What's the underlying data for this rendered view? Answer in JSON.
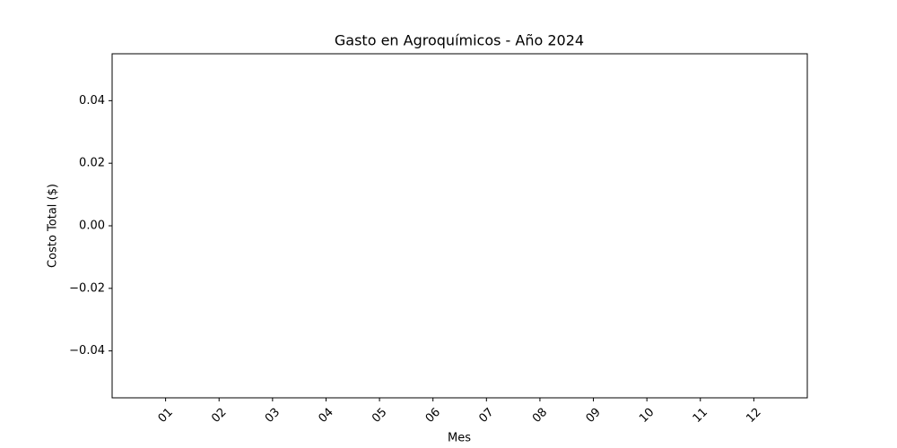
{
  "chart_data": {
    "type": "bar",
    "title": "Gasto en Agroquímicos - Año 2024",
    "x_label": "Mes",
    "y_label": "Costo Total ($)",
    "categories": [
      "01",
      "02",
      "03",
      "04",
      "05",
      "06",
      "07",
      "08",
      "09",
      "10",
      "11",
      "12"
    ],
    "values": [
      0,
      0,
      0,
      0,
      0,
      0,
      0,
      0,
      0,
      0,
      0,
      0
    ],
    "color": "#1f77b4",
    "ylim": [
      -0.055,
      0.055
    ],
    "yticks": [
      {
        "value": -0.04,
        "label": "−0.04"
      },
      {
        "value": -0.02,
        "label": "−0.02"
      },
      {
        "value": 0,
        "label": "0.00"
      },
      0.02,
      0.04
    ],
    "grid": false
  }
}
